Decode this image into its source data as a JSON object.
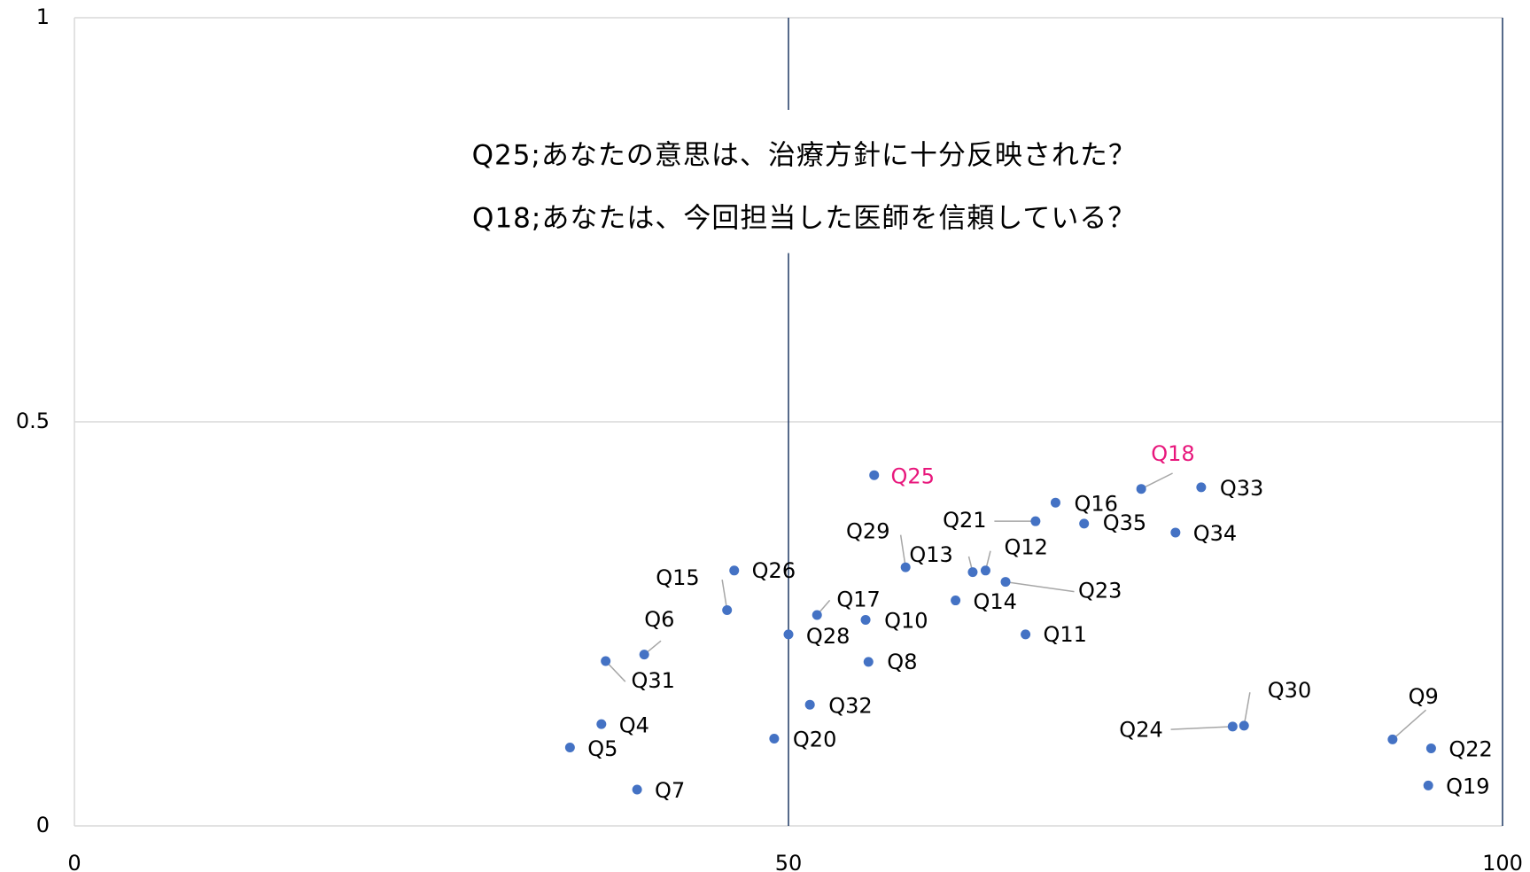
{
  "chart_data": {
    "type": "scatter",
    "title_lines": [
      "Q25;あなたの意思は、治療方針に十分反映された？",
      "Q18;あなたは、今回担当した医師を信頼している？"
    ],
    "color": "#4472c4",
    "label_color": "#000000",
    "highlight_color": "#e8177c",
    "points": [
      {
        "label": "Q25",
        "x": 56.0,
        "y": 0.434,
        "highlight": true
      },
      {
        "label": "Q18",
        "x": 74.7,
        "y": 0.417,
        "highlight": true
      },
      {
        "label": "Q33",
        "x": 78.9,
        "y": 0.419
      },
      {
        "label": "Q16",
        "x": 68.7,
        "y": 0.4
      },
      {
        "label": "Q21",
        "x": 67.3,
        "y": 0.377
      },
      {
        "label": "Q35",
        "x": 70.7,
        "y": 0.374
      },
      {
        "label": "Q34",
        "x": 77.1,
        "y": 0.363
      },
      {
        "label": "Q29",
        "x": 58.2,
        "y": 0.32
      },
      {
        "label": "Q13",
        "x": 62.9,
        "y": 0.314
      },
      {
        "label": "Q12",
        "x": 63.8,
        "y": 0.316
      },
      {
        "label": "Q23",
        "x": 65.2,
        "y": 0.302
      },
      {
        "label": "Q26",
        "x": 46.2,
        "y": 0.316
      },
      {
        "label": "Q15",
        "x": 45.7,
        "y": 0.267
      },
      {
        "label": "Q14",
        "x": 61.7,
        "y": 0.279
      },
      {
        "label": "Q17",
        "x": 52.0,
        "y": 0.261
      },
      {
        "label": "Q10",
        "x": 55.4,
        "y": 0.255
      },
      {
        "label": "Q28",
        "x": 50.0,
        "y": 0.237
      },
      {
        "label": "Q11",
        "x": 66.6,
        "y": 0.237
      },
      {
        "label": "Q6",
        "x": 39.9,
        "y": 0.212
      },
      {
        "label": "Q31",
        "x": 37.2,
        "y": 0.204
      },
      {
        "label": "Q8",
        "x": 55.6,
        "y": 0.203
      },
      {
        "label": "Q32",
        "x": 51.5,
        "y": 0.15
      },
      {
        "label": "Q4",
        "x": 36.9,
        "y": 0.126
      },
      {
        "label": "Q24",
        "x": 81.1,
        "y": 0.123
      },
      {
        "label": "Q30",
        "x": 81.9,
        "y": 0.124
      },
      {
        "label": "Q20",
        "x": 49.0,
        "y": 0.108
      },
      {
        "label": "Q9",
        "x": 92.3,
        "y": 0.107
      },
      {
        "label": "Q5",
        "x": 34.7,
        "y": 0.097
      },
      {
        "label": "Q22",
        "x": 95.0,
        "y": 0.096
      },
      {
        "label": "Q7",
        "x": 39.4,
        "y": 0.045
      },
      {
        "label": "Q19",
        "x": 94.8,
        "y": 0.05
      }
    ],
    "xlim": [
      0,
      100
    ],
    "xticks": [
      0,
      50,
      100
    ],
    "xgrid_color": "#1f3864",
    "ylim": [
      0,
      1
    ],
    "yticks": [
      0,
      0.5,
      1
    ],
    "ygrid_color": "#d9d9d9"
  }
}
